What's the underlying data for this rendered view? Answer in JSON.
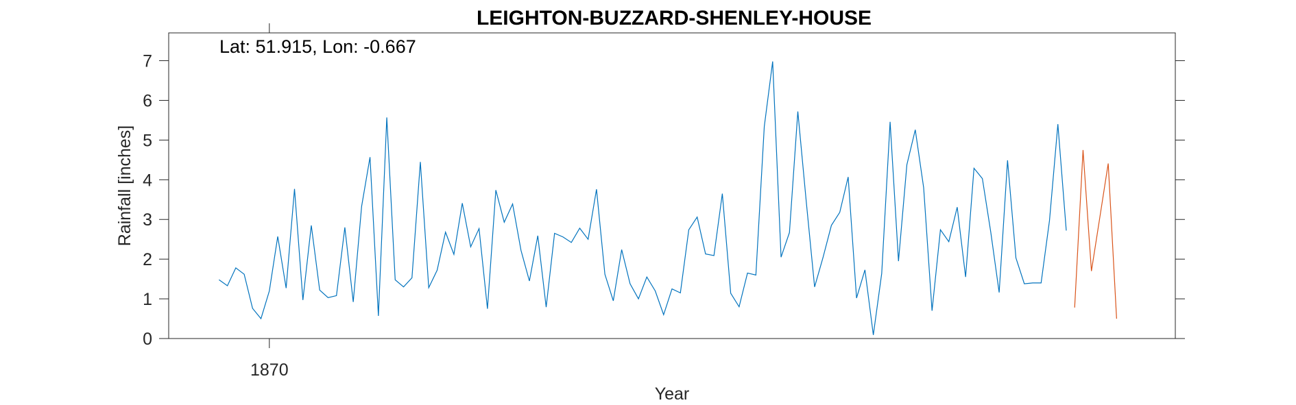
{
  "chart_data": {
    "type": "line",
    "title": "LEIGHTON-BUZZARD-SHENLEY-HOUSE",
    "annotation": "Lat: 51.915, Lon: -0.667",
    "xlabel": "Year",
    "ylabel": "Rainfall [inches]",
    "xlim": [
      1858,
      1978
    ],
    "ylim": [
      0,
      7.7
    ],
    "yticks": [
      0,
      1,
      2,
      3,
      4,
      5,
      6,
      7
    ],
    "xticks": [
      1870
    ],
    "grid": false,
    "colors": {
      "series1": "#0072BD",
      "series2": "#D95319",
      "axis": "#262626"
    },
    "series": [
      {
        "x": [
          1864,
          1865,
          1866,
          1867,
          1868,
          1869,
          1870,
          1871,
          1872,
          1873,
          1874,
          1875,
          1876,
          1877,
          1878,
          1879,
          1880,
          1881,
          1882,
          1883,
          1884,
          1885,
          1886,
          1887,
          1888,
          1889,
          1890,
          1891,
          1892,
          1893,
          1894,
          1895,
          1896,
          1897,
          1898,
          1899,
          1900,
          1901,
          1902,
          1903,
          1904,
          1905,
          1906,
          1907,
          1908,
          1909,
          1910,
          1911,
          1912,
          1913,
          1914,
          1915,
          1916,
          1917,
          1918,
          1919,
          1920,
          1921,
          1922,
          1923,
          1924,
          1925,
          1926,
          1927,
          1928,
          1929,
          1930,
          1931,
          1932,
          1933,
          1934,
          1935,
          1936,
          1937,
          1938,
          1939,
          1940,
          1941,
          1942,
          1943,
          1944,
          1945,
          1946,
          1947,
          1948,
          1949,
          1950,
          1951,
          1952,
          1953,
          1954,
          1955,
          1956,
          1957,
          1958,
          1959,
          1960,
          1961,
          1962,
          1963,
          1964,
          1965
        ],
        "values": [
          1.48,
          1.33,
          1.78,
          1.62,
          0.76,
          0.5,
          1.2,
          2.57,
          1.27,
          3.77,
          0.97,
          2.85,
          1.22,
          1.03,
          1.08,
          2.8,
          0.92,
          3.33,
          4.57,
          0.57,
          5.57,
          1.48,
          1.3,
          1.53,
          4.45,
          1.28,
          1.72,
          2.68,
          2.12,
          3.41,
          2.31,
          2.77,
          0.75,
          3.74,
          2.93,
          3.39,
          2.22,
          1.45,
          2.59,
          0.79,
          2.65,
          2.56,
          2.42,
          2.78,
          2.5,
          3.76,
          1.62,
          0.95,
          2.24,
          1.38,
          1.0,
          1.55,
          1.2,
          0.6,
          1.25,
          1.15,
          2.74,
          3.06,
          2.13,
          2.09,
          3.65,
          1.14,
          0.8,
          1.65,
          1.6,
          5.34,
          6.98,
          2.05,
          2.67,
          5.72,
          3.46,
          1.3,
          2.04,
          2.85,
          3.18,
          4.07,
          1.02,
          1.73,
          0.09,
          1.64,
          5.46,
          1.95,
          4.38,
          5.26,
          3.8,
          0.7,
          2.74,
          2.44,
          3.31,
          1.55,
          4.29,
          4.03,
          2.68,
          1.16,
          4.49,
          2.03,
          1.38,
          1.4,
          1.4,
          2.97,
          5.4,
          2.72
        ]
      },
      {
        "x": [
          1966,
          1967,
          1968,
          1969,
          1970,
          1971
        ],
        "values": [
          0.78,
          4.75,
          1.7,
          3.05,
          4.41,
          0.5
        ]
      }
    ]
  }
}
